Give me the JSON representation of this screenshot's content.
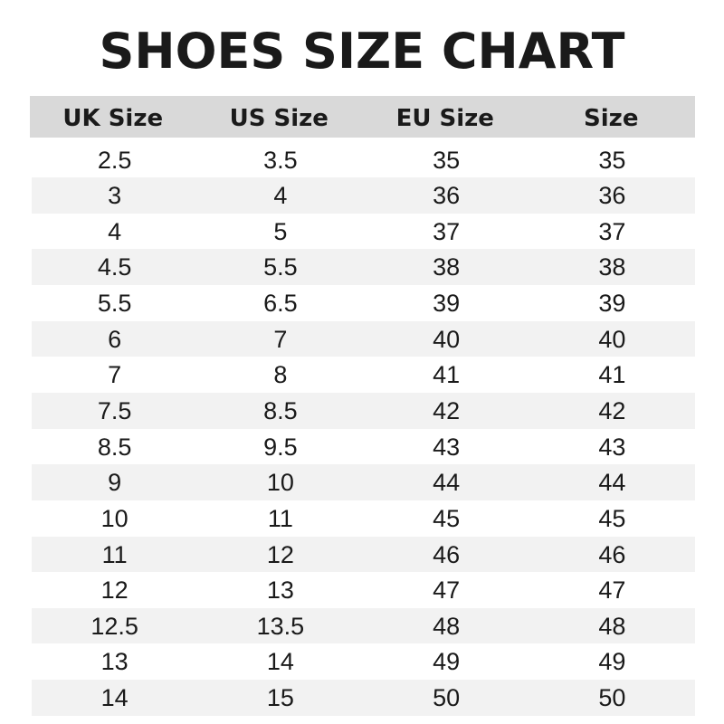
{
  "title": "SHOES SIZE CHART",
  "colors": {
    "header_bg": "#d9d9d9",
    "stripe_bg": "#f2f2f2",
    "text": "#1a1a1a"
  },
  "headers": [
    "UK Size",
    "US Size",
    "EU Size",
    "Size"
  ],
  "rows": [
    [
      "2.5",
      "3.5",
      "35",
      "35"
    ],
    [
      "3",
      "4",
      "36",
      "36"
    ],
    [
      "4",
      "5",
      "37",
      "37"
    ],
    [
      "4.5",
      "5.5",
      "38",
      "38"
    ],
    [
      "5.5",
      "6.5",
      "39",
      "39"
    ],
    [
      "6",
      "7",
      "40",
      "40"
    ],
    [
      "7",
      "8",
      "41",
      "41"
    ],
    [
      "7.5",
      "8.5",
      "42",
      "42"
    ],
    [
      "8.5",
      "9.5",
      "43",
      "43"
    ],
    [
      "9",
      "10",
      "44",
      "44"
    ],
    [
      "10",
      "11",
      "45",
      "45"
    ],
    [
      "11",
      "12",
      "46",
      "46"
    ],
    [
      "12",
      "13",
      "47",
      "47"
    ],
    [
      "12.5",
      "13.5",
      "48",
      "48"
    ],
    [
      "13",
      "14",
      "49",
      "49"
    ],
    [
      "14",
      "15",
      "50",
      "50"
    ]
  ]
}
